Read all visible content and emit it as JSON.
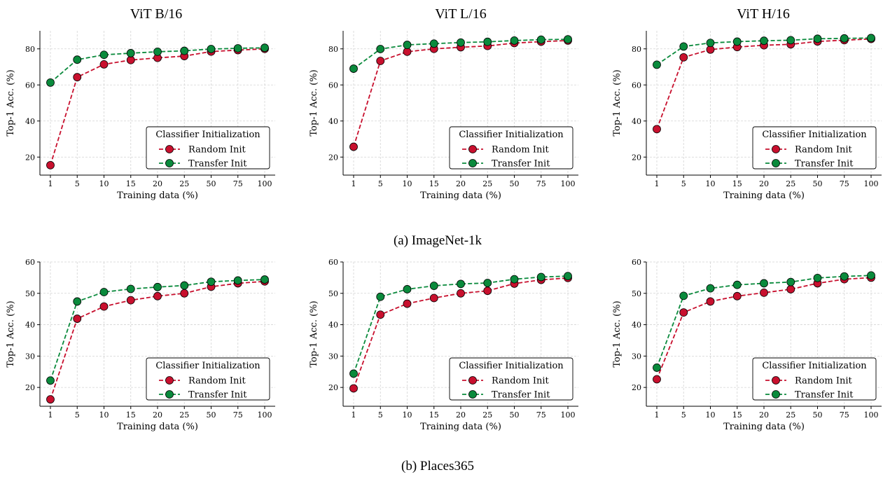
{
  "column_titles": [
    "ViT B/16",
    "ViT L/16",
    "ViT H/16"
  ],
  "row_captions": [
    "(a) ImageNet-1k",
    "(b) Places365"
  ],
  "colors": {
    "random": "#c8102e",
    "transfer": "#0a8a3c"
  },
  "chart_data": [
    {
      "type": "line",
      "row": 0,
      "col": 0,
      "xlabel": "Training data (%)",
      "ylabel": "Top-1 Acc. (%)",
      "categories": [
        "1",
        "5",
        "10",
        "15",
        "20",
        "25",
        "50",
        "75",
        "100"
      ],
      "ylim": [
        10,
        90
      ],
      "yticks": [
        20,
        40,
        60,
        80
      ],
      "legend_title": "Classifier Initialization",
      "series": [
        {
          "name": "Random Init",
          "values": [
            15.5,
            64.3,
            71.4,
            73.8,
            75.0,
            76.0,
            78.5,
            79.3,
            80.0
          ]
        },
        {
          "name": "Transfer Init",
          "values": [
            61.3,
            74.0,
            76.7,
            77.6,
            78.4,
            78.9,
            79.9,
            80.3,
            80.6
          ]
        }
      ]
    },
    {
      "type": "line",
      "row": 0,
      "col": 1,
      "xlabel": "Training data (%)",
      "ylabel": "Top-1 Acc. (%)",
      "categories": [
        "1",
        "5",
        "10",
        "15",
        "20",
        "25",
        "50",
        "75",
        "100"
      ],
      "ylim": [
        10,
        90
      ],
      "yticks": [
        20,
        40,
        60,
        80
      ],
      "legend_title": "Classifier Initialization",
      "series": [
        {
          "name": "Random Init",
          "values": [
            25.7,
            73.3,
            78.4,
            80.0,
            80.9,
            81.6,
            83.2,
            84.0,
            84.6
          ]
        },
        {
          "name": "Transfer Init",
          "values": [
            69.0,
            79.9,
            82.2,
            82.9,
            83.5,
            83.9,
            84.6,
            85.1,
            85.3
          ]
        }
      ]
    },
    {
      "type": "line",
      "row": 0,
      "col": 2,
      "xlabel": "Training data (%)",
      "ylabel": "Top-1 Acc. (%)",
      "categories": [
        "1",
        "5",
        "10",
        "15",
        "20",
        "25",
        "50",
        "75",
        "100"
      ],
      "ylim": [
        10,
        90
      ],
      "yticks": [
        20,
        40,
        60,
        80
      ],
      "legend_title": "Classifier Initialization",
      "series": [
        {
          "name": "Random Init",
          "values": [
            35.5,
            75.3,
            79.6,
            81.0,
            82.0,
            82.5,
            84.1,
            84.8,
            85.5
          ]
        },
        {
          "name": "Transfer Init",
          "values": [
            71.2,
            81.3,
            83.3,
            84.0,
            84.5,
            84.8,
            85.6,
            85.8,
            86.0
          ]
        }
      ]
    },
    {
      "type": "line",
      "row": 1,
      "col": 0,
      "xlabel": "Training data (%)",
      "ylabel": "Top-1 Acc. (%)",
      "categories": [
        "1",
        "5",
        "10",
        "15",
        "20",
        "25",
        "50",
        "75",
        "100"
      ],
      "ylim": [
        14,
        60
      ],
      "yticks": [
        20,
        30,
        40,
        50,
        60
      ],
      "legend_title": "Classifier Initialization",
      "series": [
        {
          "name": "Random Init",
          "values": [
            16.2,
            41.9,
            45.8,
            47.8,
            49.1,
            50.0,
            52.1,
            53.2,
            53.8
          ]
        },
        {
          "name": "Transfer Init",
          "values": [
            22.2,
            47.4,
            50.4,
            51.4,
            52.0,
            52.5,
            53.7,
            54.1,
            54.4
          ]
        }
      ]
    },
    {
      "type": "line",
      "row": 1,
      "col": 1,
      "xlabel": "Training data (%)",
      "ylabel": "Top-1 Acc. (%)",
      "categories": [
        "1",
        "5",
        "10",
        "15",
        "20",
        "25",
        "50",
        "75",
        "100"
      ],
      "ylim": [
        14,
        60
      ],
      "yticks": [
        20,
        30,
        40,
        50,
        60
      ],
      "legend_title": "Classifier Initialization",
      "series": [
        {
          "name": "Random Init",
          "values": [
            19.7,
            43.2,
            46.7,
            48.5,
            50.0,
            50.8,
            53.1,
            54.3,
            54.9
          ]
        },
        {
          "name": "Transfer Init",
          "values": [
            24.4,
            48.9,
            51.3,
            52.4,
            53.0,
            53.3,
            54.5,
            55.2,
            55.5
          ]
        }
      ]
    },
    {
      "type": "line",
      "row": 1,
      "col": 2,
      "xlabel": "Training data (%)",
      "ylabel": "Top-1 Acc. (%)",
      "categories": [
        "1",
        "5",
        "10",
        "15",
        "20",
        "25",
        "50",
        "75",
        "100"
      ],
      "ylim": [
        14,
        60
      ],
      "yticks": [
        20,
        30,
        40,
        50,
        60
      ],
      "legend_title": "Classifier Initialization",
      "series": [
        {
          "name": "Random Init",
          "values": [
            22.6,
            43.9,
            47.4,
            49.1,
            50.2,
            51.3,
            53.2,
            54.5,
            55.0
          ]
        },
        {
          "name": "Transfer Init",
          "values": [
            26.3,
            49.2,
            51.6,
            52.7,
            53.2,
            53.6,
            54.9,
            55.4,
            55.7
          ]
        }
      ]
    }
  ]
}
